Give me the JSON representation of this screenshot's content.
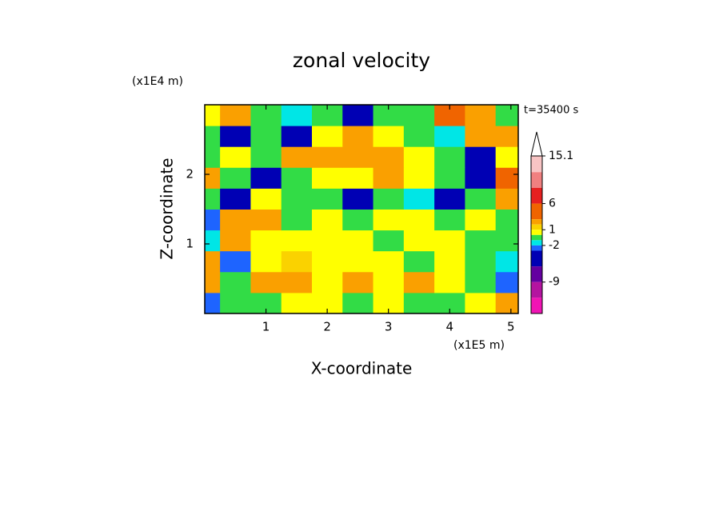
{
  "chart_data": {
    "type": "contour",
    "title": "zonal velocity",
    "x_label": "X-coordinate",
    "y_label": "Z-coordinate",
    "x_unit_label": "(x1E5 m)",
    "y_unit_label": "(x1E4 m)",
    "annotation": "t=35400 s",
    "xlim": [
      0,
      5.12
    ],
    "ylim": [
      0,
      3
    ],
    "xticks": [
      1,
      2,
      3,
      4,
      5
    ],
    "yticks": [
      1,
      2
    ],
    "x": [
      0,
      0.5,
      1,
      1.5,
      2,
      2.5,
      3,
      3.5,
      4,
      4.5,
      5
    ],
    "z": [
      0.15,
      0.45,
      0.75,
      1.05,
      1.35,
      1.65,
      1.95,
      2.25,
      2.55,
      2.85
    ],
    "values": [
      [
        -2.5,
        -0.5,
        -0.5,
        0.5,
        0.5,
        -0.5,
        0.5,
        -0.5,
        -0.5,
        0.5,
        2.5
      ],
      [
        2.5,
        -0.5,
        2.5,
        2.5,
        0.5,
        2.5,
        0.5,
        2.5,
        0.5,
        -0.5,
        -2.5
      ],
      [
        2.5,
        -2.5,
        0.5,
        1.5,
        0.5,
        0.5,
        0.5,
        -0.5,
        0.5,
        -0.5,
        -1.5
      ],
      [
        -1.5,
        2.5,
        0.5,
        0.5,
        0.5,
        0.5,
        -0.5,
        0.5,
        0.5,
        -0.5,
        -0.5
      ],
      [
        -2.5,
        2.5,
        2.5,
        -0.5,
        0.5,
        -0.5,
        0.5,
        0.5,
        -0.5,
        0.5,
        -0.5
      ],
      [
        -0.5,
        -4.5,
        0.5,
        -0.5,
        -0.5,
        -4.5,
        -0.5,
        -1.5,
        -4.5,
        -0.5,
        2.5
      ],
      [
        2.5,
        -0.5,
        -4.5,
        -0.5,
        0.5,
        0.5,
        2.5,
        0.5,
        -0.5,
        -4.5,
        4.5
      ],
      [
        -0.5,
        0.5,
        -0.5,
        2.5,
        2.5,
        2.5,
        2.5,
        0.5,
        -0.5,
        -4.5,
        0.5
      ],
      [
        -0.5,
        -4.5,
        -0.5,
        -4.5,
        0.5,
        2.5,
        0.5,
        -0.5,
        -1.5,
        2.5,
        2.5
      ],
      [
        0.5,
        2.5,
        -0.5,
        -1.5,
        -0.5,
        -4.5,
        -0.5,
        -0.5,
        4.5,
        2.5,
        -0.5
      ]
    ],
    "colorbar": {
      "lim": [
        -15,
        15.1
      ],
      "levels": [
        15.1,
        12,
        9,
        6,
        3,
        2,
        1,
        0,
        -1,
        -2,
        -3,
        -6,
        -9,
        -12
      ],
      "colors": [
        "#ffffff",
        "#f8c4c4",
        "#f08080",
        "#e62020",
        "#f06400",
        "#faa000",
        "#fad200",
        "#ffff00",
        "#32dc46",
        "#00e6e6",
        "#1e64ff",
        "#0000b4",
        "#6400a0",
        "#b414a0",
        "#f014b4"
      ],
      "ticks": [
        15.1,
        6,
        1,
        -2,
        -9
      ]
    }
  }
}
